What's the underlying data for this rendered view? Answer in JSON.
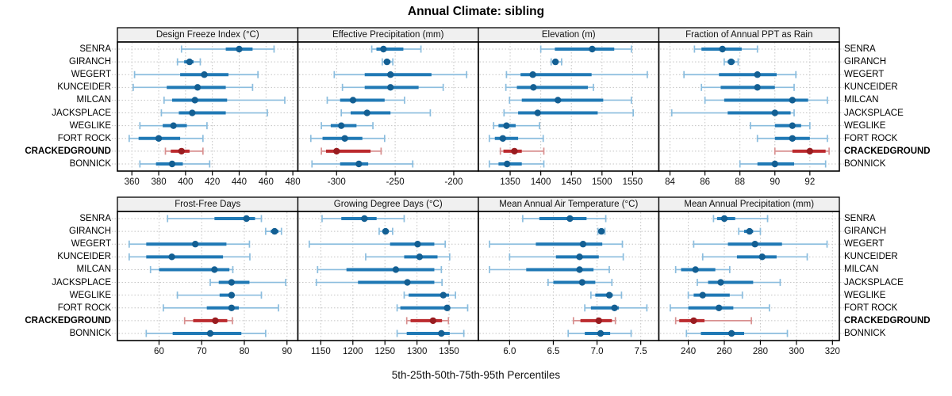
{
  "title": "Annual Climate: sibling",
  "caption": "5th-25th-50th-75th-95th Percentiles",
  "rows": [
    "SENRA",
    "GIRANCH",
    "WEGERT",
    "KUNCEIDER",
    "MILCAN",
    "JACKSPLACE",
    "WEGLIKE",
    "FORT ROCK",
    "CRACKEDGROUND",
    "BONNICK"
  ],
  "highlight_row": "CRACKEDGROUND",
  "colors": {
    "blue_light": "#8bbdde",
    "blue_mid": "#2079b5",
    "blue_dot": "#135f93",
    "red_light": "#d89090",
    "red_mid": "#bb2a2e",
    "red_dot": "#991c20",
    "grid": "#c4c4c4",
    "strip_bg": "#f0f0f0",
    "border": "#000000"
  },
  "chart_data": {
    "type": "dot-whisker-trellis",
    "percentiles": [
      5,
      25,
      50,
      75,
      95
    ],
    "legend_note": "each row shows 5th-25th-50th-75th-95th percentile interval; dot = median",
    "categories": [
      "SENRA",
      "GIRANCH",
      "WEGERT",
      "KUNCEIDER",
      "MILCAN",
      "JACKSPLACE",
      "WEGLIKE",
      "FORT ROCK",
      "CRACKEDGROUND",
      "BONNICK"
    ],
    "highlight": "CRACKEDGROUND",
    "grid": "dotted",
    "panels": [
      {
        "title": "Design Freeze Index (°C)",
        "xlim": [
          351,
          482
        ],
        "ticks": [
          360,
          380,
          400,
          420,
          440,
          460,
          480
        ],
        "tick_labels": [
          "360",
          "380",
          "400",
          "420",
          "440",
          "460",
          "480"
        ],
        "values": [
          [
            397,
            430,
            440,
            450,
            466
          ],
          [
            394,
            399,
            403,
            406,
            411
          ],
          [
            362,
            396,
            414,
            432,
            454
          ],
          [
            361,
            386,
            409,
            430,
            450
          ],
          [
            384,
            390,
            407,
            431,
            474
          ],
          [
            382,
            395,
            405,
            430,
            461
          ],
          [
            366,
            383,
            391,
            401,
            416
          ],
          [
            358,
            365,
            380,
            396,
            413
          ],
          [
            385,
            389,
            397,
            403,
            413
          ],
          [
            366,
            378,
            390,
            398,
            418
          ]
        ]
      },
      {
        "title": "Effective Precipitation (mm)",
        "xlim": [
          -331,
          -181
        ],
        "ticks": [
          -300,
          -250,
          -200
        ],
        "tick_labels": [
          "-300",
          "-250",
          "-200"
        ],
        "values": [
          [
            -270,
            -266,
            -260,
            -243,
            -228
          ],
          [
            -261,
            -259,
            -257,
            -254,
            -252
          ],
          [
            -302,
            -276,
            -254,
            -219,
            -189
          ],
          [
            -295,
            -276,
            -254,
            -230,
            -209
          ],
          [
            -308,
            -297,
            -286,
            -259,
            -242
          ],
          [
            -296,
            -288,
            -274,
            -254,
            -220
          ],
          [
            -313,
            -305,
            -296,
            -283,
            -269
          ],
          [
            -322,
            -312,
            -293,
            -278,
            -259
          ],
          [
            -313,
            -309,
            -300,
            -271,
            -262
          ],
          [
            -321,
            -297,
            -281,
            -273,
            -235
          ]
        ]
      },
      {
        "title": "Elevation (m)",
        "xlim": [
          1302,
          1589
        ],
        "ticks": [
          1350,
          1400,
          1450,
          1500,
          1550
        ],
        "tick_labels": [
          "1350",
          "1400",
          "1450",
          "1500",
          "1550"
        ],
        "values": [
          [
            1400,
            1423,
            1484,
            1520,
            1548
          ],
          [
            1417,
            1420,
            1424,
            1428,
            1434
          ],
          [
            1344,
            1367,
            1387,
            1483,
            1574
          ],
          [
            1343,
            1361,
            1388,
            1477,
            1486
          ],
          [
            1349,
            1369,
            1428,
            1502,
            1548
          ],
          [
            1340,
            1363,
            1395,
            1493,
            1551
          ],
          [
            1323,
            1331,
            1344,
            1359,
            1398
          ],
          [
            1316,
            1325,
            1338,
            1363,
            1404
          ],
          [
            1334,
            1339,
            1357,
            1369,
            1405
          ],
          [
            1316,
            1331,
            1345,
            1369,
            1405
          ]
        ]
      },
      {
        "title": "Fraction of Annual PPT as Rain",
        "xlim": [
          83.5,
          93.55
        ],
        "ticks": [
          84,
          86,
          88,
          90,
          92
        ],
        "tick_labels": [
          "84",
          "86",
          "88",
          "90",
          "92"
        ],
        "values": [
          [
            85.4,
            85.8,
            87.0,
            88.1,
            89.0
          ],
          [
            87.1,
            87.3,
            87.5,
            87.7,
            87.9
          ],
          [
            84.8,
            86.8,
            89.0,
            90.1,
            91.2
          ],
          [
            85.8,
            86.9,
            89.0,
            90.0,
            91.1
          ],
          [
            86.0,
            87.1,
            91.0,
            91.9,
            93.0
          ],
          [
            84.1,
            87.3,
            90.0,
            90.9,
            91.1
          ],
          [
            88.6,
            90.0,
            91.0,
            91.5,
            92.0
          ],
          [
            89.0,
            90.0,
            91.0,
            92.0,
            93.0
          ],
          [
            90.0,
            91.0,
            92.0,
            92.9,
            93.1
          ],
          [
            88.0,
            89.0,
            90.0,
            91.1,
            92.9
          ]
        ]
      },
      {
        "title": "Frost-Free Days",
        "xlim": [
          50.8,
          92
        ],
        "ticks": [
          60,
          70,
          80,
          90
        ],
        "tick_labels": [
          "60",
          "70",
          "80",
          "90"
        ],
        "values": [
          [
            62,
            73,
            80.5,
            82.5,
            84
          ],
          [
            85,
            86.2,
            87.1,
            88,
            88.7
          ],
          [
            53,
            57,
            68.5,
            75.8,
            81.2
          ],
          [
            53,
            57,
            63,
            75,
            81.3
          ],
          [
            58,
            60,
            73,
            76.5,
            77.3
          ],
          [
            72,
            74,
            77,
            81.2,
            89.7
          ],
          [
            64.3,
            74.2,
            77,
            77.7,
            84
          ],
          [
            61,
            71.2,
            77,
            78.7,
            88
          ],
          [
            66,
            68,
            73.2,
            76,
            77.2
          ],
          [
            57,
            63.2,
            72,
            79.3,
            85
          ]
        ]
      },
      {
        "title": "Growing Degree Days (°C)",
        "xlim": [
          1118,
          1392
        ],
        "ticks": [
          1150,
          1200,
          1250,
          1300,
          1350
        ],
        "tick_labels": [
          "1150",
          "1200",
          "1250",
          "1300",
          "1350"
        ],
        "values": [
          [
            1152,
            1182,
            1218,
            1237,
            1280
          ],
          [
            1241,
            1246,
            1251,
            1256,
            1262
          ],
          [
            1132,
            1258,
            1301,
            1327,
            1344
          ],
          [
            1220,
            1280,
            1304,
            1332,
            1351
          ],
          [
            1145,
            1190,
            1267,
            1327,
            1338
          ],
          [
            1143,
            1208,
            1285,
            1327,
            1339
          ],
          [
            1280,
            1287,
            1341,
            1350,
            1360
          ],
          [
            1269,
            1274,
            1347,
            1351,
            1379
          ],
          [
            1284,
            1290,
            1325,
            1339,
            1349
          ],
          [
            1269,
            1284,
            1338,
            1351,
            1373
          ]
        ]
      },
      {
        "title": "Mean Annual Air Temperature (°C)",
        "xlim": [
          5.67,
          7.68
        ],
        "ticks": [
          6.0,
          6.5,
          7.0,
          7.5
        ],
        "tick_labels": [
          "6.0",
          "6.5",
          "7.0",
          "7.5"
        ],
        "values": [
          [
            6.15,
            6.34,
            6.69,
            6.88,
            7.1
          ],
          [
            7.01,
            7.02,
            7.05,
            7.07,
            7.09
          ],
          [
            5.77,
            6.3,
            6.84,
            7.06,
            7.29
          ],
          [
            6.0,
            6.53,
            6.8,
            7.02,
            7.3
          ],
          [
            5.77,
            6.19,
            6.8,
            6.96,
            7.14
          ],
          [
            6.44,
            6.5,
            6.83,
            6.98,
            7.17
          ],
          [
            6.93,
            6.98,
            7.14,
            7.18,
            7.28
          ],
          [
            6.86,
            6.93,
            7.2,
            7.25,
            7.57
          ],
          [
            6.73,
            6.81,
            7.02,
            7.17,
            7.21
          ],
          [
            6.67,
            6.86,
            7.04,
            7.15,
            7.39
          ]
        ]
      },
      {
        "title": "Mean Annual Precipitation (mm)",
        "xlim": [
          225,
          322.5
        ],
        "ticks": [
          240,
          260,
          280,
          300,
          320
        ],
        "tick_labels": [
          "240",
          "260",
          "280",
          "300",
          "320"
        ],
        "values": [
          [
            254,
            256,
            260,
            266,
            284
          ],
          [
            268,
            271,
            274,
            276,
            280
          ],
          [
            243,
            262,
            277,
            292,
            317
          ],
          [
            248,
            267,
            281,
            289,
            306
          ],
          [
            233,
            236,
            244,
            255,
            263
          ],
          [
            245,
            251,
            258,
            276,
            291
          ],
          [
            240,
            243,
            248,
            263,
            270
          ],
          [
            230,
            240,
            257,
            265,
            285
          ],
          [
            233,
            235,
            243,
            249,
            275
          ],
          [
            239,
            247,
            264,
            271,
            295
          ]
        ]
      }
    ]
  }
}
